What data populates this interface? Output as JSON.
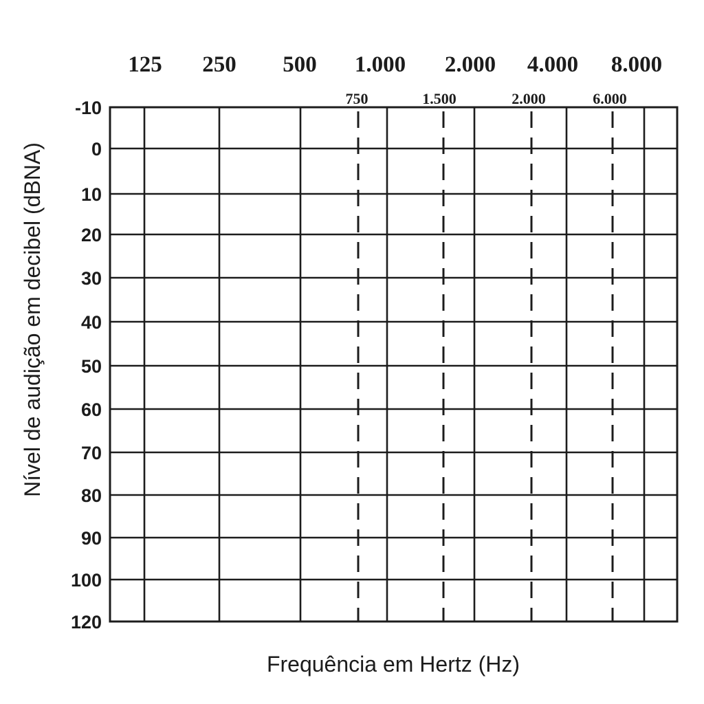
{
  "chart_data": {
    "type": "audiogram",
    "xlabel": "Frequência em Hertz (Hz)",
    "ylabel": "Nível de audição em decibel (dBNA)",
    "x_main_ticks": [
      "125",
      "250",
      "500",
      "1.000",
      "2.000",
      "4.000",
      "8.000"
    ],
    "x_sub_ticks": [
      "750",
      "1.500",
      "2.000",
      "6.000"
    ],
    "y_ticks": [
      "-10",
      "0",
      "10",
      "20",
      "30",
      "40",
      "50",
      "60",
      "70",
      "80",
      "90",
      "100",
      "120"
    ],
    "ylim": [
      -10,
      120
    ],
    "y_inverted": true,
    "grid": true,
    "sub_tick_lines": "dashed",
    "series": []
  }
}
